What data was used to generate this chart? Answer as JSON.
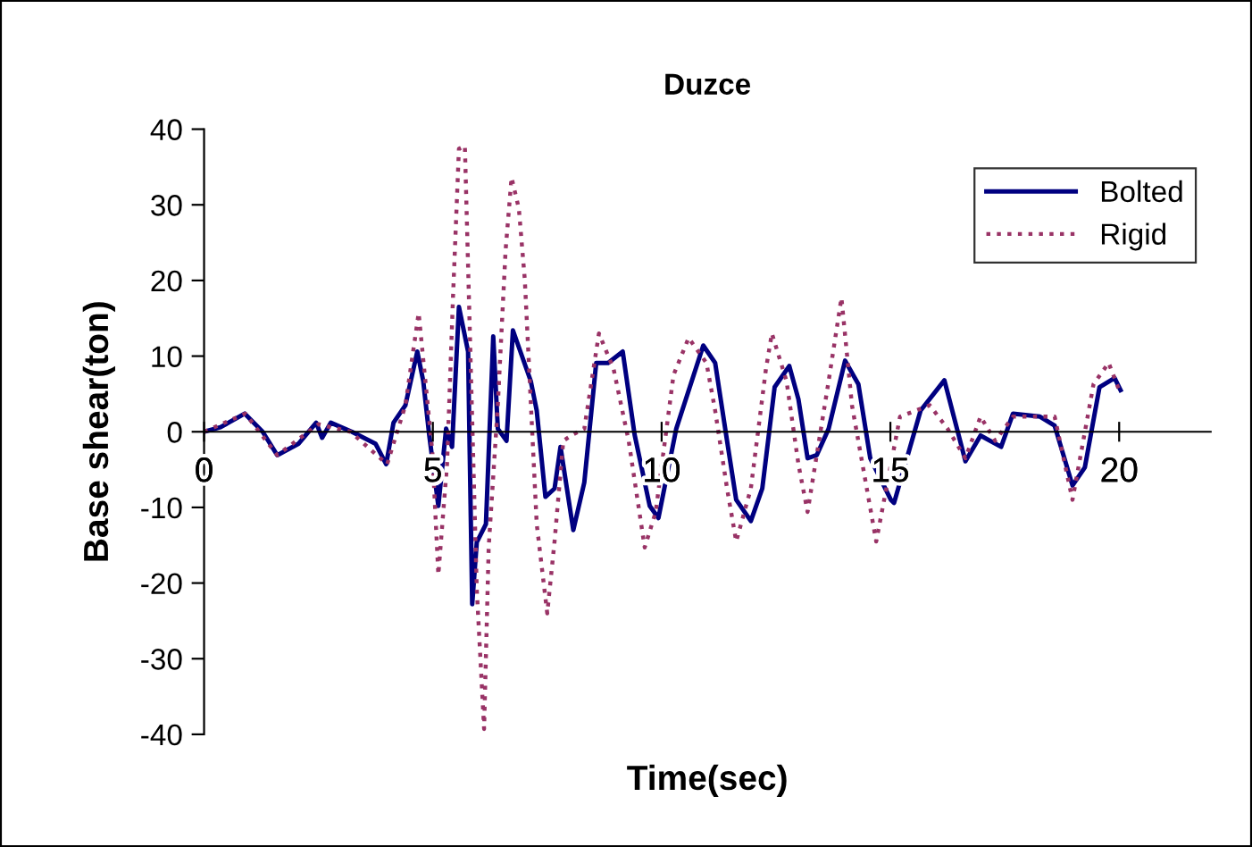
{
  "chart_data": {
    "type": "line",
    "title": "Duzce",
    "xlabel": "Time(sec)",
    "ylabel": "Base shear(ton)",
    "xlim": [
      0,
      22
    ],
    "xticks": [
      0,
      5,
      10,
      15,
      20
    ],
    "ylim": [
      -40,
      40
    ],
    "yticks": [
      -40,
      -30,
      -20,
      -10,
      0,
      10,
      20,
      30,
      40
    ],
    "grid": false,
    "legend": "top right",
    "series": [
      {
        "name": "Bolted",
        "color": "#000080",
        "line_style": "solid",
        "x": [
          0,
          0.36,
          0.89,
          1.28,
          1.6,
          2.06,
          2.45,
          2.58,
          2.77,
          3.23,
          3.75,
          3.98,
          4.14,
          4.4,
          4.66,
          4.79,
          4.92,
          5.12,
          5.29,
          5.42,
          5.57,
          5.77,
          5.86,
          5.96,
          6.16,
          6.32,
          6.42,
          6.61,
          6.75,
          7.14,
          7.27,
          7.46,
          7.66,
          7.79,
          8.07,
          8.31,
          8.57,
          8.83,
          9.15,
          9.41,
          9.74,
          9.93,
          10.32,
          10.91,
          11.17,
          11.43,
          11.63,
          11.95,
          12.2,
          12.47,
          12.79,
          12.99,
          13.19,
          13.39,
          13.65,
          14.01,
          14.3,
          14.56,
          15.01,
          15.08,
          15.66,
          16.18,
          16.64,
          16.97,
          17.42,
          17.68,
          18.27,
          18.59,
          18.98,
          19.25,
          19.57,
          19.9,
          20.03
        ],
        "values": [
          0,
          0.6,
          2.4,
          0,
          -3.1,
          -1.6,
          1.2,
          -0.8,
          1.2,
          0,
          -1.6,
          -4.3,
          1.2,
          3.5,
          10.6,
          6.7,
          -0.4,
          -9.8,
          0.4,
          -2.0,
          16.5,
          10.6,
          -22.8,
          -14.6,
          -12.2,
          12.6,
          0.4,
          -1.2,
          13.4,
          6.7,
          2.8,
          -8.6,
          -7.5,
          -2.0,
          -13.0,
          -6.7,
          9.1,
          9.1,
          10.6,
          -0.4,
          -9.8,
          -11.4,
          0.4,
          11.4,
          9.1,
          -1.2,
          -9.0,
          -11.8,
          -7.5,
          5.9,
          8.7,
          4.3,
          -3.5,
          -3.1,
          0.4,
          9.4,
          6.3,
          -3.5,
          -9.0,
          -9.4,
          2.8,
          6.8,
          -3.9,
          -0.5,
          -2.0,
          2.4,
          2.0,
          0.8,
          -7.1,
          -4.7,
          5.9,
          7.1,
          5.5
        ]
      },
      {
        "name": "Rigid",
        "color": "#993366",
        "line_style": "dotted",
        "x": [
          0,
          0.9,
          1.6,
          2.5,
          3.2,
          4.0,
          4.4,
          4.69,
          4.99,
          5.12,
          5.31,
          5.44,
          5.57,
          5.7,
          5.83,
          5.96,
          6.12,
          6.22,
          6.42,
          6.59,
          6.72,
          6.88,
          7.01,
          7.27,
          7.5,
          7.66,
          7.85,
          8.05,
          8.31,
          8.63,
          8.95,
          9.28,
          9.63,
          9.87,
          10.26,
          10.59,
          10.98,
          11.17,
          11.43,
          11.63,
          11.95,
          12.28,
          12.41,
          12.73,
          12.99,
          13.19,
          13.65,
          13.93,
          14.16,
          14.69,
          15.21,
          15.86,
          16.25,
          16.64,
          16.97,
          17.29,
          17.68,
          18.59,
          18.98,
          19.44,
          19.77,
          20.0
        ],
        "values": [
          0,
          2.4,
          -3.1,
          1.0,
          0,
          -4.3,
          3.5,
          15.7,
          -2.7,
          -18.9,
          -4.3,
          17.7,
          37.4,
          37.8,
          8.3,
          -20.8,
          -39.3,
          -15.3,
          3.5,
          24.0,
          33.6,
          29.5,
          20.1,
          -12.2,
          -24.0,
          -14.5,
          -1.2,
          -0.4,
          0.4,
          13.0,
          8.3,
          -1.2,
          -15.3,
          -10.6,
          7.5,
          12.4,
          9.1,
          2.8,
          -7.5,
          -14.5,
          -7.5,
          8.3,
          13.0,
          6.7,
          -4.3,
          -10.6,
          6.7,
          17.7,
          3.5,
          -14.5,
          2.0,
          3.5,
          0.4,
          -3.5,
          2.0,
          -1.2,
          2.0,
          2.0,
          -9.0,
          6.3,
          9.1,
          5.5
        ]
      }
    ]
  }
}
